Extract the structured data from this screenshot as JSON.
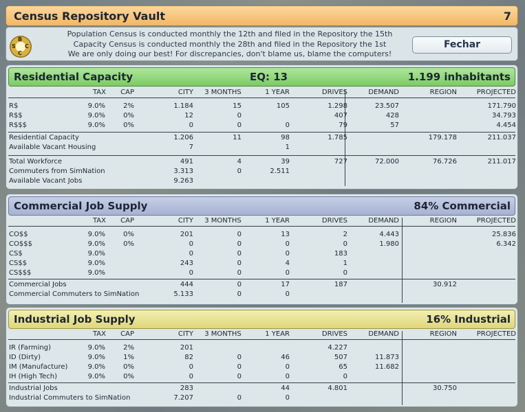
{
  "window": {
    "title": "Census Repository Vault",
    "page_number": "7"
  },
  "info": {
    "line1": "Population Census is conducted monthly the 12th and filed in the Repository the 15th",
    "line2": "Capacity Census is conducted monthly the 28th and filed in the Repository the 1st",
    "line3": "We are only doing our best! For discrepancies, don't blame us, blame the computers!",
    "logo_letters": [
      "B",
      "S",
      "C",
      "C"
    ],
    "close_label": "Fechar"
  },
  "columns": {
    "tax": "TAX",
    "cap": "CAP",
    "city": "CITY",
    "m3": "3 MONTHS",
    "y1": "1 YEAR",
    "drives": "DRIVES",
    "demand": "DEMAND",
    "region": "REGION",
    "projected": "PROJECTED"
  },
  "residential": {
    "title": "Residential Capacity",
    "eq": "EQ: 13",
    "summary": "1.199 inhabitants",
    "rows": [
      {
        "label": "R$",
        "tax": "9.0%",
        "cap": "2%",
        "city": "1.184",
        "m3": "15",
        "y1": "105",
        "drives": "1.298",
        "demand": "23.507",
        "region": "",
        "projected": "171.790"
      },
      {
        "label": "R$$",
        "tax": "9.0%",
        "cap": "0%",
        "city": "12",
        "m3": "0",
        "y1": "",
        "drives": "407",
        "demand": "428",
        "region": "",
        "projected": "34.793"
      },
      {
        "label": "R$$$",
        "tax": "9.0%",
        "cap": "0%",
        "city": "0",
        "m3": "0",
        "y1": "0",
        "drives": "79",
        "demand": "57",
        "region": "",
        "projected": "4.454"
      },
      {
        "label": "Residential Capacity",
        "tax": "",
        "cap": "",
        "city": "1.206",
        "m3": "11",
        "y1": "98",
        "drives": "1.785",
        "demand": "",
        "region": "179.178",
        "projected": "211.037"
      },
      {
        "label": "Available Vacant Housing",
        "tax": "",
        "cap": "",
        "city": "7",
        "m3": "",
        "y1": "1",
        "drives": "",
        "demand": "",
        "region": "",
        "projected": ""
      },
      {
        "label": "Total Workforce",
        "tax": "",
        "cap": "",
        "city": "491",
        "m3": "4",
        "y1": "39",
        "drives": "727",
        "demand": "72.000",
        "region": "76.726",
        "projected": "211.017"
      },
      {
        "label": "Commuters from SimNation",
        "tax": "",
        "cap": "",
        "city": "3.313",
        "m3": "0",
        "y1": "2.511",
        "drives": "",
        "demand": "",
        "region": "",
        "projected": ""
      },
      {
        "label": "Available Vacant Jobs",
        "tax": "",
        "cap": "",
        "city": "9.263",
        "m3": "",
        "y1": "",
        "drives": "",
        "demand": "",
        "region": "",
        "projected": ""
      }
    ]
  },
  "commercial": {
    "title": "Commercial Job Supply",
    "summary": "84% Commercial",
    "rows": [
      {
        "label": "CO$$",
        "tax": "9.0%",
        "cap": "0%",
        "city": "201",
        "m3": "0",
        "y1": "13",
        "drives": "2",
        "demand": "4.443",
        "region": "",
        "projected": "25.836"
      },
      {
        "label": "CO$$$",
        "tax": "9.0%",
        "cap": "0%",
        "city": "0",
        "m3": "0",
        "y1": "0",
        "drives": "0",
        "demand": "1.980",
        "region": "",
        "projected": "6.342"
      },
      {
        "label": "CS$",
        "tax": "9.0%",
        "cap": "",
        "city": "0",
        "m3": "0",
        "y1": "0",
        "drives": "183",
        "demand": "",
        "region": "",
        "projected": ""
      },
      {
        "label": "CS$$",
        "tax": "9.0%",
        "cap": "",
        "city": "243",
        "m3": "0",
        "y1": "4",
        "drives": "1",
        "demand": "",
        "region": "",
        "projected": ""
      },
      {
        "label": "CS$$$",
        "tax": "9.0%",
        "cap": "",
        "city": "0",
        "m3": "0",
        "y1": "0",
        "drives": "0",
        "demand": "",
        "region": "",
        "projected": ""
      },
      {
        "label": "Commercial Jobs",
        "tax": "",
        "cap": "",
        "city": "444",
        "m3": "0",
        "y1": "17",
        "drives": "187",
        "demand": "",
        "region": "30.912",
        "projected": ""
      },
      {
        "label": "Commercial Commuters to SimNation",
        "tax": "",
        "cap": "",
        "city": "5.133",
        "m3": "0",
        "y1": "0",
        "drives": "",
        "demand": "",
        "region": "",
        "projected": ""
      }
    ]
  },
  "industrial": {
    "title": "Industrial Job Supply",
    "summary": "16% Industrial",
    "rows": [
      {
        "label": "IR (Farming)",
        "tax": "9.0%",
        "cap": "2%",
        "city": "201",
        "m3": "",
        "y1": "",
        "drives": "4.227",
        "demand": "",
        "region": "",
        "projected": ""
      },
      {
        "label": "ID (Dirty)",
        "tax": "9.0%",
        "cap": "1%",
        "city": "82",
        "m3": "0",
        "y1": "46",
        "drives": "507",
        "demand": "11.873",
        "region": "",
        "projected": ""
      },
      {
        "label": "IM (Manufacture)",
        "tax": "9.0%",
        "cap": "0%",
        "city": "0",
        "m3": "0",
        "y1": "0",
        "drives": "65",
        "demand": "11.682",
        "region": "",
        "projected": ""
      },
      {
        "label": "IH (High Tech)",
        "tax": "9.0%",
        "cap": "0%",
        "city": "0",
        "m3": "0",
        "y1": "0",
        "drives": "0",
        "demand": "",
        "region": "",
        "projected": ""
      },
      {
        "label": "Industrial Jobs",
        "tax": "",
        "cap": "",
        "city": "283",
        "m3": "",
        "y1": "44",
        "drives": "4.801",
        "demand": "",
        "region": "30.750",
        "projected": ""
      },
      {
        "label": "Industrial Commuters to SimNation",
        "tax": "",
        "cap": "",
        "city": "7.207",
        "m3": "0",
        "y1": "0",
        "drives": "",
        "demand": "",
        "region": "",
        "projected": ""
      }
    ]
  },
  "colors": {
    "title_bar": "#f2b766",
    "residential_header": "#7ccb63",
    "commercial_header": "#a6b2d3",
    "industrial_header": "#dfd67a",
    "panel_bg": "#dde6e8"
  }
}
